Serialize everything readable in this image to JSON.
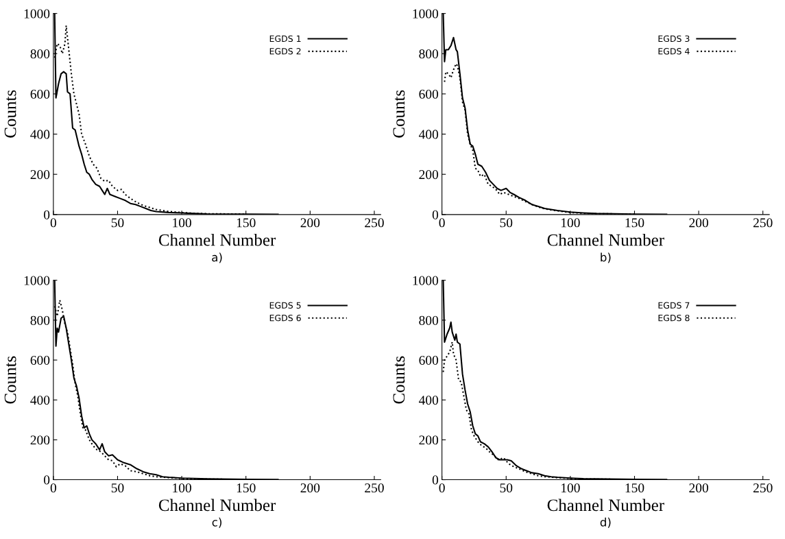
{
  "chart_data": [
    {
      "type": "line",
      "xlabel": "Channel Number",
      "ylabel": "Counts",
      "xlim": [
        0,
        255
      ],
      "ylim": [
        0,
        1000
      ],
      "xticks": [
        0,
        50,
        100,
        150,
        200,
        250
      ],
      "yticks": [
        0,
        200,
        400,
        600,
        800,
        1000
      ],
      "legend": "top right",
      "grid": false,
      "annotations": [
        "a)"
      ],
      "series": [
        {
          "name": "EGDS 1",
          "color": "#000000",
          "line_style": "solid",
          "x": [
            1,
            2,
            4,
            6,
            8,
            10,
            11,
            13,
            15,
            17,
            20,
            22,
            24,
            26,
            28,
            30,
            33,
            36,
            38,
            40,
            42,
            44,
            48,
            52,
            56,
            60,
            64,
            68,
            72,
            76,
            80,
            90,
            100,
            110,
            120,
            150,
            175
          ],
          "values": [
            1000,
            580,
            650,
            700,
            710,
            700,
            610,
            600,
            430,
            420,
            340,
            300,
            250,
            210,
            200,
            175,
            150,
            140,
            120,
            100,
            130,
            100,
            90,
            80,
            70,
            55,
            50,
            40,
            30,
            20,
            15,
            10,
            8,
            5,
            3,
            2,
            1
          ]
        },
        {
          "name": "EGDS 2",
          "color": "#000000",
          "line_style": "dotted",
          "x": [
            1,
            3,
            5,
            7,
            9,
            10,
            12,
            14,
            16,
            18,
            20,
            22,
            25,
            28,
            31,
            34,
            37,
            40,
            43,
            46,
            50,
            53,
            56,
            60,
            65,
            70,
            75,
            80,
            90,
            100,
            110,
            120,
            150
          ],
          "values": [
            780,
            850,
            840,
            800,
            850,
            940,
            820,
            700,
            600,
            550,
            500,
            400,
            350,
            290,
            250,
            230,
            180,
            165,
            170,
            140,
            120,
            125,
            100,
            80,
            60,
            45,
            35,
            25,
            15,
            10,
            6,
            4,
            2
          ]
        }
      ]
    },
    {
      "type": "line",
      "xlabel": "Channel Number",
      "ylabel": "Counts",
      "xlim": [
        0,
        255
      ],
      "ylim": [
        0,
        1000
      ],
      "xticks": [
        0,
        50,
        100,
        150,
        200,
        250
      ],
      "yticks": [
        0,
        200,
        400,
        600,
        800,
        1000
      ],
      "legend": "top right",
      "grid": false,
      "annotations": [
        "b)"
      ],
      "series": [
        {
          "name": "EGDS 3",
          "color": "#000000",
          "line_style": "solid",
          "x": [
            1,
            2,
            3,
            5,
            7,
            9,
            11,
            12,
            14,
            16,
            18,
            20,
            22,
            24,
            26,
            28,
            31,
            34,
            37,
            40,
            43,
            46,
            50,
            53,
            56,
            60,
            65,
            70,
            75,
            80,
            85,
            90,
            100,
            110,
            120,
            150,
            175
          ],
          "values": [
            1000,
            760,
            820,
            820,
            840,
            880,
            820,
            810,
            700,
            580,
            530,
            420,
            350,
            340,
            300,
            250,
            240,
            210,
            170,
            150,
            130,
            120,
            130,
            110,
            100,
            85,
            70,
            50,
            40,
            30,
            25,
            20,
            12,
            8,
            5,
            2,
            1
          ]
        },
        {
          "name": "EGDS 4",
          "color": "#000000",
          "line_style": "dotted",
          "x": [
            2,
            3,
            5,
            7,
            9,
            11,
            12,
            14,
            16,
            18,
            20,
            22,
            24,
            26,
            28,
            30,
            33,
            36,
            39,
            42,
            45,
            48,
            52,
            56,
            60,
            65,
            70,
            75,
            80,
            90,
            100,
            110,
            120,
            150
          ],
          "values": [
            660,
            710,
            700,
            680,
            720,
            750,
            740,
            680,
            560,
            520,
            400,
            350,
            320,
            230,
            220,
            190,
            200,
            150,
            140,
            125,
            100,
            110,
            100,
            90,
            80,
            65,
            50,
            38,
            28,
            18,
            10,
            6,
            4,
            2
          ]
        }
      ]
    },
    {
      "type": "line",
      "xlabel": "Channel Number",
      "ylabel": "Counts",
      "xlim": [
        0,
        255
      ],
      "ylim": [
        0,
        1000
      ],
      "xticks": [
        0,
        50,
        100,
        150,
        200,
        250
      ],
      "yticks": [
        0,
        200,
        400,
        600,
        800,
        1000
      ],
      "legend": "top right",
      "grid": false,
      "annotations": [
        "c)"
      ],
      "series": [
        {
          "name": "EGDS 5",
          "color": "#000000",
          "line_style": "solid",
          "x": [
            1,
            2,
            3,
            4,
            6,
            8,
            10,
            12,
            14,
            16,
            18,
            20,
            22,
            24,
            26,
            28,
            30,
            33,
            36,
            38,
            40,
            43,
            46,
            50,
            55,
            60,
            65,
            70,
            75,
            80,
            85,
            90,
            100,
            110,
            120,
            150,
            175
          ],
          "values": [
            1000,
            670,
            760,
            740,
            810,
            820,
            760,
            680,
            600,
            510,
            470,
            410,
            320,
            260,
            270,
            230,
            200,
            180,
            150,
            180,
            140,
            120,
            125,
            100,
            85,
            75,
            55,
            40,
            30,
            25,
            15,
            12,
            8,
            6,
            4,
            2,
            1
          ]
        },
        {
          "name": "EGDS 6",
          "color": "#000000",
          "line_style": "dotted",
          "x": [
            1,
            3,
            5,
            7,
            9,
            11,
            13,
            15,
            17,
            19,
            21,
            23,
            25,
            28,
            31,
            34,
            37,
            40,
            43,
            46,
            49,
            52,
            56,
            60,
            65,
            70,
            75,
            80,
            90,
            100,
            110,
            120,
            150
          ],
          "values": [
            870,
            820,
            900,
            850,
            780,
            740,
            660,
            580,
            480,
            420,
            330,
            260,
            250,
            200,
            170,
            150,
            140,
            120,
            100,
            95,
            65,
            80,
            70,
            45,
            40,
            30,
            20,
            15,
            10,
            6,
            4,
            3,
            1
          ]
        }
      ]
    },
    {
      "type": "line",
      "xlabel": "Channel Number",
      "ylabel": "Counts",
      "xlim": [
        0,
        255
      ],
      "ylim": [
        0,
        1000
      ],
      "xticks": [
        0,
        50,
        100,
        150,
        200,
        250
      ],
      "yticks": [
        0,
        200,
        400,
        600,
        800,
        1000
      ],
      "legend": "top right",
      "grid": false,
      "annotations": [
        "d)"
      ],
      "series": [
        {
          "name": "EGDS 7",
          "color": "#000000",
          "line_style": "solid",
          "x": [
            1,
            2,
            4,
            6,
            7,
            8,
            10,
            11,
            12,
            14,
            16,
            18,
            20,
            22,
            24,
            26,
            28,
            30,
            33,
            36,
            39,
            42,
            45,
            48,
            51,
            54,
            58,
            62,
            66,
            70,
            75,
            80,
            85,
            90,
            100,
            110,
            120,
            150,
            175
          ],
          "values": [
            1000,
            690,
            730,
            760,
            790,
            740,
            700,
            730,
            690,
            680,
            530,
            450,
            380,
            340,
            270,
            230,
            220,
            190,
            180,
            165,
            140,
            110,
            100,
            100,
            100,
            95,
            70,
            55,
            45,
            35,
            30,
            20,
            15,
            12,
            8,
            5,
            4,
            2,
            1
          ]
        },
        {
          "name": "EGDS 8",
          "color": "#000000",
          "line_style": "dotted",
          "x": [
            1,
            2,
            4,
            6,
            8,
            9,
            11,
            13,
            15,
            17,
            19,
            21,
            23,
            25,
            28,
            31,
            34,
            37,
            40,
            44,
            48,
            52,
            56,
            60,
            65,
            70,
            75,
            80,
            90,
            100,
            110,
            120,
            150
          ],
          "values": [
            540,
            600,
            620,
            640,
            690,
            630,
            600,
            500,
            490,
            420,
            350,
            330,
            250,
            220,
            190,
            170,
            160,
            140,
            125,
            100,
            110,
            80,
            65,
            55,
            40,
            30,
            20,
            15,
            10,
            6,
            4,
            3,
            1
          ]
        }
      ]
    }
  ]
}
